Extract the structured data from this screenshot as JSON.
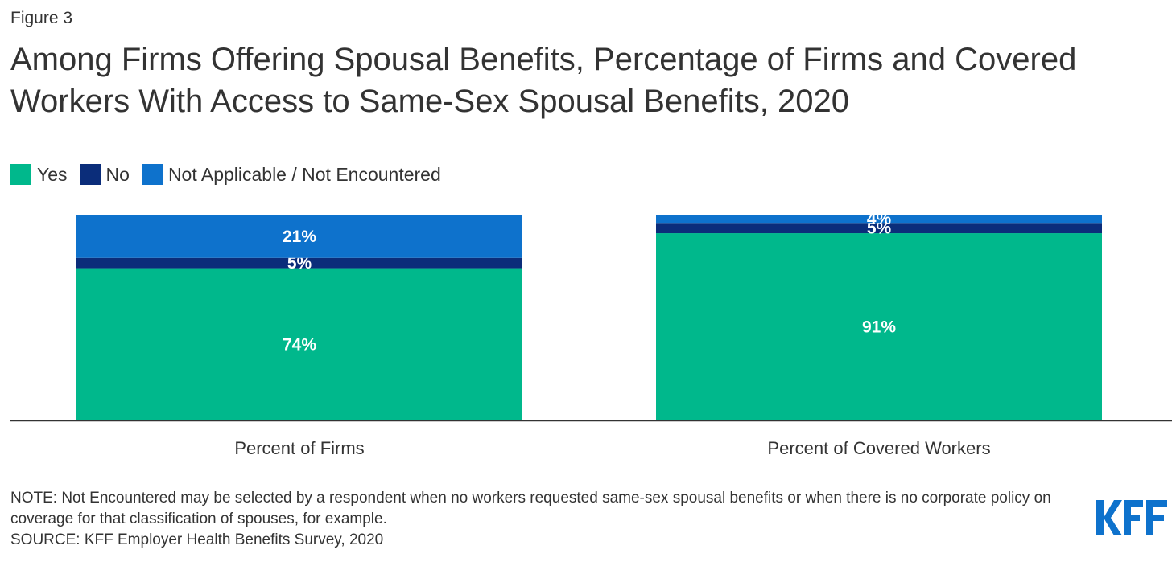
{
  "figure_label": "Figure 3",
  "title": "Among Firms Offering Spousal Benefits, Percentage of Firms and Covered Workers With Access to Same-Sex Spousal Benefits, 2020",
  "legend": [
    {
      "label": "Yes",
      "color": "#00b88c"
    },
    {
      "label": "No",
      "color": "#0b2d7a"
    },
    {
      "label": "Not Applicable / Not Encountered",
      "color": "#0e72cc"
    }
  ],
  "chart_data": {
    "type": "bar",
    "stacked": true,
    "categories": [
      "Percent of Firms",
      "Percent of Covered Workers"
    ],
    "series": [
      {
        "name": "Yes",
        "values": [
          74,
          91
        ],
        "labels": [
          "74%",
          "91%"
        ],
        "color": "#00b88c"
      },
      {
        "name": "No",
        "values": [
          5,
          5
        ],
        "labels": [
          "5%",
          "5%"
        ],
        "color": "#0b2d7a"
      },
      {
        "name": "Not Applicable / Not Encountered",
        "values": [
          21,
          4
        ],
        "labels": [
          "21%",
          "4%"
        ],
        "color": "#0e72cc"
      }
    ],
    "ylim": [
      0,
      100
    ],
    "grid": false,
    "legend_position": "top-left"
  },
  "notes": {
    "note": "NOTE: Not Encountered may be selected by a respondent when no workers requested same-sex spousal benefits or when there is no corporate policy on coverage for that classification of spouses, for example.",
    "source": "SOURCE: KFF Employer Health Benefits Survey, 2020"
  },
  "logo": {
    "text": "KFF",
    "color": "#0e72cc"
  }
}
